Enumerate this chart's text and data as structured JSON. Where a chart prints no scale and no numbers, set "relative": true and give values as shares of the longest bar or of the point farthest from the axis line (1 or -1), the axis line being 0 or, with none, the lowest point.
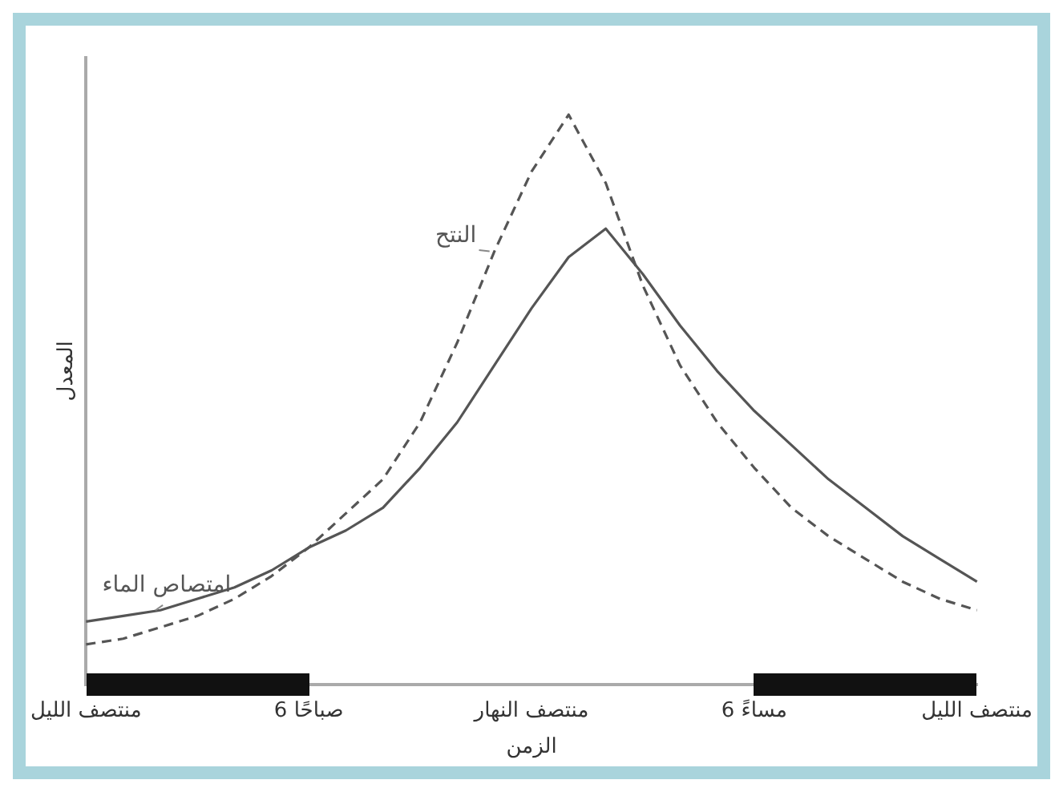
{
  "chart_data": {
    "type": "line",
    "relative": true,
    "xlabel": "الزمن",
    "ylabel": "المعدل",
    "categories": [
      "منتصف الليل",
      null,
      null,
      null,
      null,
      null,
      "6 صباحًا",
      null,
      null,
      null,
      null,
      null,
      "منتصف النهار",
      null,
      null,
      null,
      null,
      null,
      "6 مساءً",
      null,
      null,
      null,
      null,
      null,
      "منتصف الليل"
    ],
    "series": [
      {
        "name": "النتح",
        "color": "#555555",
        "line_style": "dashed",
        "values": [
          0.07,
          0.08,
          0.1,
          0.12,
          0.15,
          0.19,
          0.24,
          0.3,
          0.36,
          0.46,
          0.6,
          0.76,
          0.9,
          1.0,
          0.88,
          0.7,
          0.56,
          0.46,
          0.38,
          0.31,
          0.26,
          0.22,
          0.18,
          0.15,
          0.13
        ]
      },
      {
        "name": "امتصاص الماء",
        "color": "#555555",
        "line_style": "solid",
        "values": [
          0.11,
          0.12,
          0.13,
          0.15,
          0.17,
          0.2,
          0.24,
          0.27,
          0.31,
          0.38,
          0.46,
          0.56,
          0.66,
          0.75,
          0.8,
          0.72,
          0.63,
          0.55,
          0.48,
          0.42,
          0.36,
          0.31,
          0.26,
          0.22,
          0.18
        ]
      }
    ],
    "grid": false,
    "legend": false,
    "marker": "none"
  }
}
